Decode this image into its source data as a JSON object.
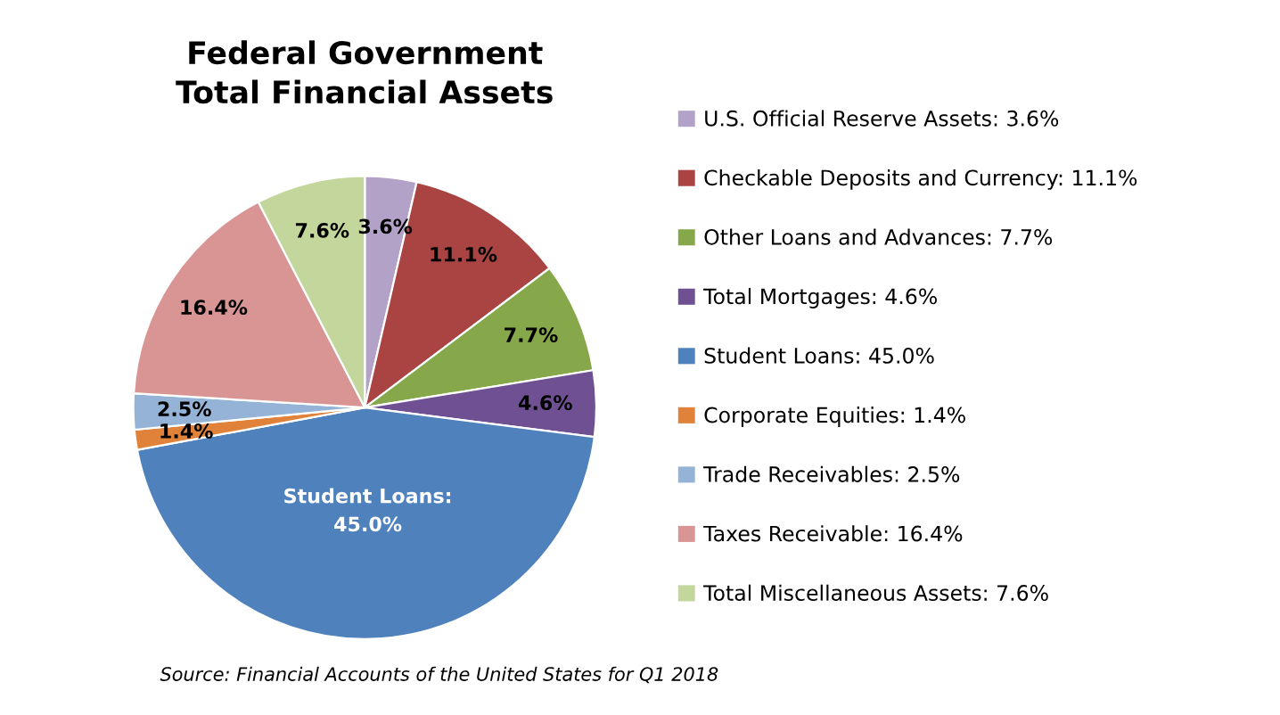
{
  "chart_data": {
    "type": "pie",
    "title": "Federal Government\nTotal Financial Assets",
    "categories": [
      "U.S. Official Reserve Assets: 3.6%",
      "Checkable Deposits and Currency: 11.1%",
      "Other Loans and Advances: 7.7%",
      "Total Mortgages: 4.6%",
      "Student Loans: 45.0%",
      "Corporate Equities: 1.4%",
      "Trade Receivables: 2.5%",
      "Taxes Receivable: 16.4%",
      "Total Miscellaneous Assets: 7.6%"
    ],
    "values": [
      3.6,
      11.1,
      7.7,
      4.6,
      45.0,
      1.4,
      2.5,
      16.4,
      7.6
    ],
    "colors": [
      "#b3a2c7",
      "#a94442",
      "#86a84a",
      "#6f5193",
      "#4f81bd",
      "#e0823a",
      "#95b3d7",
      "#d99594",
      "#c3d69b"
    ],
    "value_labels": [
      "3.6%",
      "11.1%",
      "7.7%",
      "4.6%",
      "Student Loans:\n45.0%",
      "1.4%",
      "2.5%",
      "16.4%",
      "7.6%"
    ],
    "legend": "right",
    "annotations": [
      "Source: Financial Accounts of the United States for Q1 2018"
    ]
  }
}
